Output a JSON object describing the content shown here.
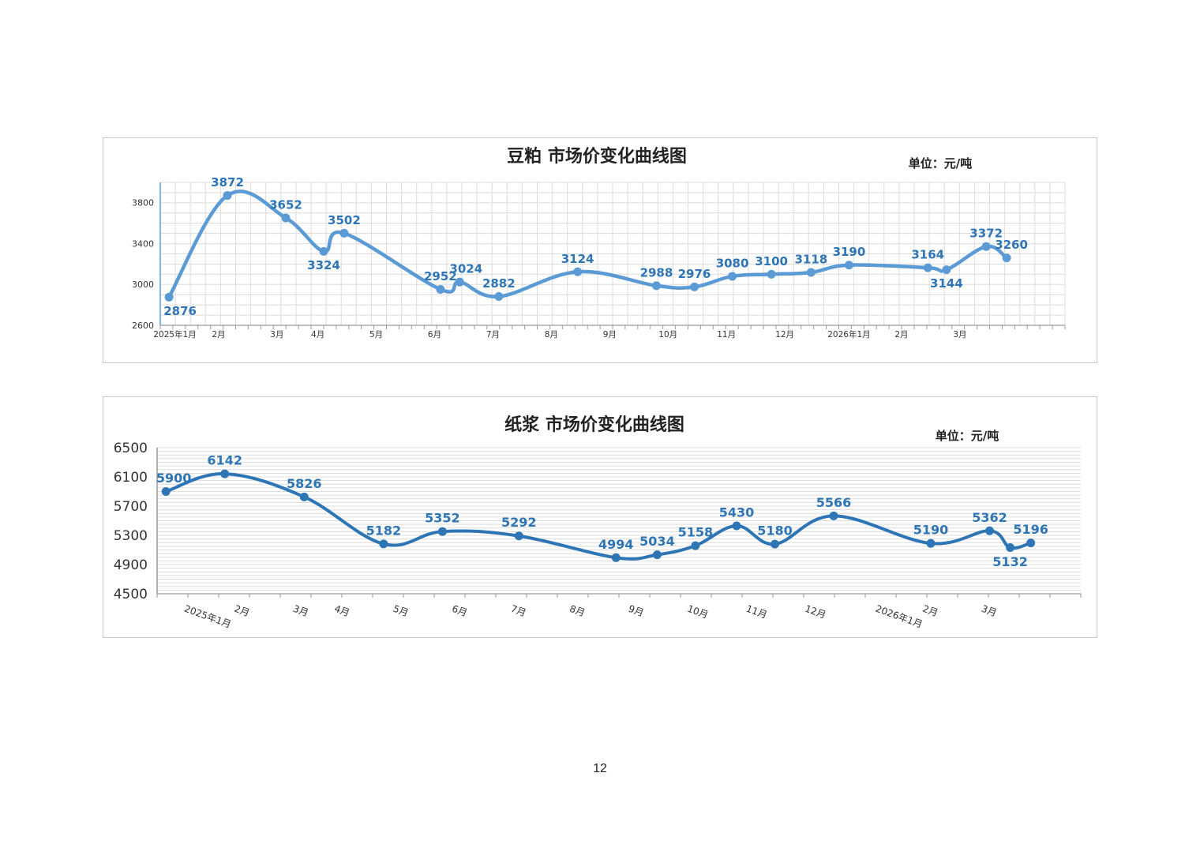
{
  "page": {
    "number": "12"
  },
  "chart_data": [
    {
      "type": "line",
      "title": "豆粕 市场价变化曲线图",
      "unit_label": "单位：元/吨",
      "xlabel": "",
      "ylabel": "",
      "ylim": [
        2600,
        4000
      ],
      "yticks": [
        2600,
        3000,
        3400,
        3800
      ],
      "xlim": [
        0,
        15.5
      ],
      "xticks": [
        {
          "x": 0.25,
          "label": "2025年1月"
        },
        {
          "x": 1.0,
          "label": "2月"
        },
        {
          "x": 2.0,
          "label": "3月"
        },
        {
          "x": 2.7,
          "label": "4月"
        },
        {
          "x": 3.7,
          "label": "5月"
        },
        {
          "x": 4.7,
          "label": "6月"
        },
        {
          "x": 5.7,
          "label": "7月"
        },
        {
          "x": 6.7,
          "label": "8月"
        },
        {
          "x": 7.7,
          "label": "9月"
        },
        {
          "x": 8.7,
          "label": "10月"
        },
        {
          "x": 9.7,
          "label": "11月"
        },
        {
          "x": 10.7,
          "label": "12月"
        },
        {
          "x": 11.8,
          "label": "2026年1月"
        },
        {
          "x": 12.7,
          "label": "2月"
        },
        {
          "x": 13.7,
          "label": "3月"
        }
      ],
      "grid": true,
      "color": "#5b9bd5",
      "label_color": "#2e75b6",
      "series": [
        {
          "values": [
            {
              "x": 0.15,
              "y": 2876,
              "label": "2876"
            },
            {
              "x": 1.15,
              "y": 3872,
              "label": "3872"
            },
            {
              "x": 2.15,
              "y": 3652,
              "label": "3652"
            },
            {
              "x": 2.8,
              "y": 3324,
              "label": "3324"
            },
            {
              "x": 3.15,
              "y": 3502,
              "label": "3502"
            },
            {
              "x": 4.8,
              "y": 2952,
              "label": "2952"
            },
            {
              "x": 5.13,
              "y": 3024,
              "label": "3024"
            },
            {
              "x": 5.8,
              "y": 2882,
              "label": "2882"
            },
            {
              "x": 7.15,
              "y": 3124,
              "label": "3124"
            },
            {
              "x": 8.5,
              "y": 2988,
              "label": "2988"
            },
            {
              "x": 9.15,
              "y": 2976,
              "label": "2976"
            },
            {
              "x": 9.8,
              "y": 3080,
              "label": "3080"
            },
            {
              "x": 10.47,
              "y": 3100,
              "label": "3100"
            },
            {
              "x": 11.15,
              "y": 3118,
              "label": "3118"
            },
            {
              "x": 11.8,
              "y": 3190,
              "label": "3190"
            },
            {
              "x": 13.15,
              "y": 3164,
              "label": "3164"
            },
            {
              "x": 13.47,
              "y": 3144,
              "label": "3144"
            },
            {
              "x": 14.15,
              "y": 3372,
              "label": "3372"
            },
            {
              "x": 14.5,
              "y": 3260,
              "label": "3260"
            }
          ]
        }
      ]
    },
    {
      "type": "line",
      "title": "纸浆 市场价变化曲线图",
      "unit_label": "单位：元/吨",
      "xlabel": "",
      "ylabel": "",
      "ylim": [
        4500,
        6500
      ],
      "yticks": [
        4500,
        4900,
        5300,
        5700,
        6100,
        6500
      ],
      "xlim": [
        0,
        15.7
      ],
      "xticks": [
        {
          "x": 0.45,
          "label": "2025年1月"
        },
        {
          "x": 1.3,
          "label": "2月"
        },
        {
          "x": 2.3,
          "label": "3月"
        },
        {
          "x": 3.0,
          "label": "4月"
        },
        {
          "x": 4.0,
          "label": "5月"
        },
        {
          "x": 5.0,
          "label": "6月"
        },
        {
          "x": 6.0,
          "label": "7月"
        },
        {
          "x": 7.0,
          "label": "8月"
        },
        {
          "x": 8.0,
          "label": "9月"
        },
        {
          "x": 9.0,
          "label": "10月"
        },
        {
          "x": 10.0,
          "label": "11月"
        },
        {
          "x": 11.0,
          "label": "12月"
        },
        {
          "x": 12.2,
          "label": "2026年1月"
        },
        {
          "x": 13.0,
          "label": "2月"
        },
        {
          "x": 14.0,
          "label": "3月"
        }
      ],
      "grid": true,
      "color": "#2e75b6",
      "label_color": "#2e75b6",
      "series": [
        {
          "values": [
            {
              "x": 0.15,
              "y": 5900,
              "label": "5900"
            },
            {
              "x": 1.15,
              "y": 6142,
              "label": "6142"
            },
            {
              "x": 2.5,
              "y": 5826,
              "label": "5826"
            },
            {
              "x": 3.85,
              "y": 5182,
              "label": "5182"
            },
            {
              "x": 4.85,
              "y": 5352,
              "label": "5352"
            },
            {
              "x": 6.15,
              "y": 5292,
              "label": "5292"
            },
            {
              "x": 7.8,
              "y": 4994,
              "label": "4994"
            },
            {
              "x": 8.5,
              "y": 5034,
              "label": "5034"
            },
            {
              "x": 9.15,
              "y": 5158,
              "label": "5158"
            },
            {
              "x": 9.85,
              "y": 5430,
              "label": "5430"
            },
            {
              "x": 10.5,
              "y": 5180,
              "label": "5180"
            },
            {
              "x": 11.5,
              "y": 5566,
              "label": "5566"
            },
            {
              "x": 13.15,
              "y": 5190,
              "label": "5190"
            },
            {
              "x": 14.15,
              "y": 5362,
              "label": "5362"
            },
            {
              "x": 14.5,
              "y": 5132,
              "label": "5132"
            },
            {
              "x": 14.85,
              "y": 5196,
              "label": "5196"
            }
          ]
        }
      ]
    }
  ]
}
